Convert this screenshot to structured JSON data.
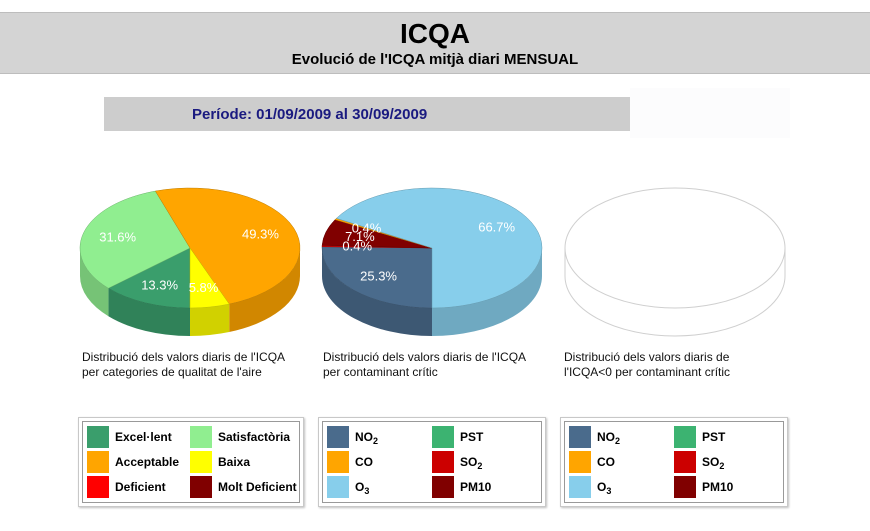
{
  "header": {
    "title": "ICQA",
    "subtitle": "Evolució de l'ICQA mitjà diari MENSUAL"
  },
  "period": {
    "label": "Període: 01/09/2009 al 30/09/2009"
  },
  "charts": [
    {
      "caption_line1": "Distribució dels valors diaris de l'ICQA",
      "caption_line2": "per categories de qualitat de l'aire",
      "slices": [
        {
          "label": "Excel·lent",
          "value": 13.3,
          "text": "13.3%",
          "color": "#3a9e6c"
        },
        {
          "label": "Satisfactòria",
          "value": 31.6,
          "text": "31.6%",
          "color": "#90ee90"
        },
        {
          "label": "Acceptable",
          "value": 49.3,
          "text": "49.3%",
          "color": "#ffa500"
        },
        {
          "label": "Baixa",
          "value": 5.8,
          "text": "5.8%",
          "color": "#ffff00"
        }
      ],
      "legend": [
        {
          "label": "Excel·lent",
          "color": "#3a9e6c"
        },
        {
          "label": "Satisfactòria",
          "color": "#90ee90"
        },
        {
          "label": "Acceptable",
          "color": "#ffa500"
        },
        {
          "label": "Baixa",
          "color": "#ffff00"
        },
        {
          "label": "Deficient",
          "color": "#ff0000"
        },
        {
          "label": "Molt Deficient",
          "color": "#800000"
        }
      ]
    },
    {
      "caption_line1": "Distribució dels valors diaris de l'ICQA",
      "caption_line2": "per contaminant crític",
      "slices": [
        {
          "label": "NO2",
          "value": 25.3,
          "text": "25.3%",
          "color": "#4a6b8c"
        },
        {
          "label": "SO2",
          "value": 0.4,
          "text": "0.4%",
          "color": "#cc0000"
        },
        {
          "label": "PM10",
          "value": 7.1,
          "text": "7.1%",
          "color": "#800000"
        },
        {
          "label": "CO",
          "value": 0.4,
          "text": "0.4%",
          "color": "#ffa500"
        },
        {
          "label": "O3",
          "value": 66.7,
          "text": "66.7%",
          "color": "#87ceeb"
        }
      ],
      "legend": [
        {
          "label": "NO",
          "sub": "2",
          "color": "#4a6b8c"
        },
        {
          "label": "PST",
          "sub": "",
          "color": "#3cb371"
        },
        {
          "label": "CO",
          "sub": "",
          "color": "#ffa500"
        },
        {
          "label": "SO",
          "sub": "2",
          "color": "#cc0000"
        },
        {
          "label": "O",
          "sub": "3",
          "color": "#87ceeb"
        },
        {
          "label": "PM10",
          "sub": "",
          "color": "#800000"
        }
      ]
    },
    {
      "caption_line1": "Distribució dels valors diaris de",
      "caption_line2": "l'ICQA<0 per contaminant crític",
      "slices": [],
      "legend": [
        {
          "label": "NO",
          "sub": "2",
          "color": "#4a6b8c"
        },
        {
          "label": "PST",
          "sub": "",
          "color": "#3cb371"
        },
        {
          "label": "CO",
          "sub": "",
          "color": "#ffa500"
        },
        {
          "label": "SO",
          "sub": "2",
          "color": "#cc0000"
        },
        {
          "label": "O",
          "sub": "3",
          "color": "#87ceeb"
        },
        {
          "label": "PM10",
          "sub": "",
          "color": "#800000"
        }
      ]
    }
  ]
}
